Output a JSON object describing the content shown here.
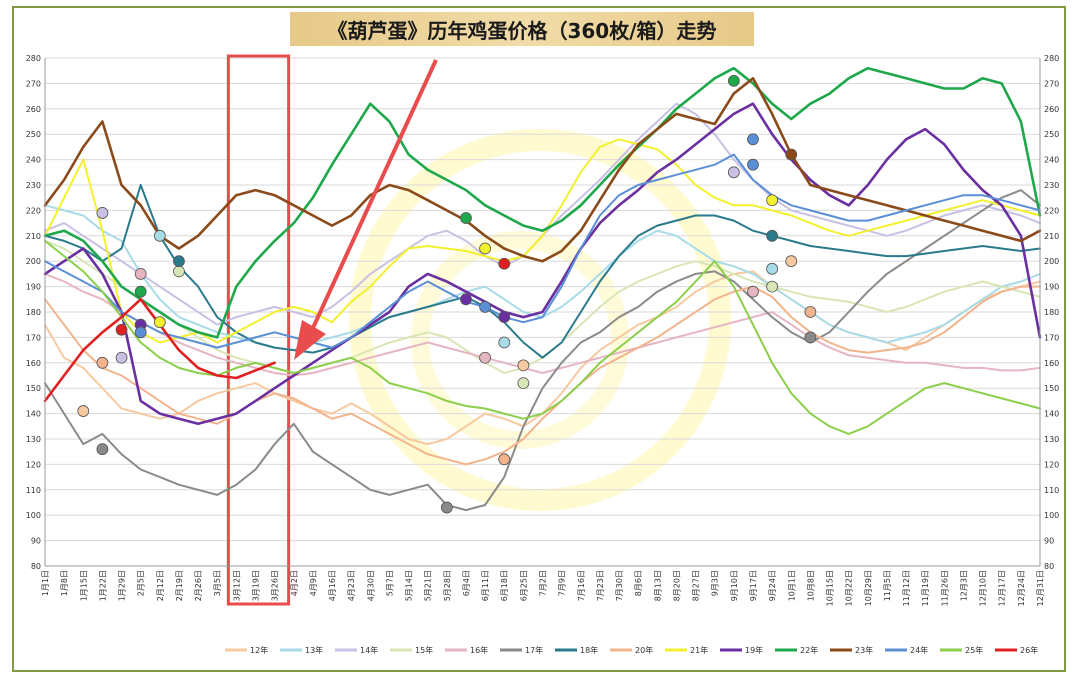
{
  "chart_data": {
    "type": "line",
    "title": "《葫芦蛋》历年鸡蛋价格（360枚/箱）走势",
    "ylim": [
      80,
      280
    ],
    "yticks": [
      80,
      90,
      100,
      110,
      120,
      130,
      140,
      150,
      160,
      170,
      180,
      190,
      200,
      210,
      220,
      230,
      240,
      250,
      260,
      270,
      280
    ],
    "x_categories": [
      "1月1日",
      "1月8日",
      "1月15日",
      "1月22日",
      "1月29日",
      "2月5日",
      "2月12日",
      "2月19日",
      "2月26日",
      "3月5日",
      "3月12日",
      "3月19日",
      "3月26日",
      "4月2日",
      "4月9日",
      "4月16日",
      "4月23日",
      "4月30日",
      "5月7日",
      "5月14日",
      "5月21日",
      "5月28日",
      "6月4日",
      "6月11日",
      "6月18日",
      "6月25日",
      "7月2日",
      "7月9日",
      "7月16日",
      "7月23日",
      "7月30日",
      "8月6日",
      "8月13日",
      "8月20日",
      "8月27日",
      "9月3日",
      "9月10日",
      "9月17日",
      "9月24日",
      "10月1日",
      "10月8日",
      "10月15日",
      "10月22日",
      "10月29日",
      "11月5日",
      "11月12日",
      "11月19日",
      "11月26日",
      "12月3日",
      "12月10日",
      "12月17日",
      "12月24日",
      "12月31日"
    ],
    "grid": true,
    "legend_position": "bottom",
    "highlight": {
      "from": "3月12日",
      "to": "3月26日",
      "color": "#e84c4c"
    },
    "series": [
      {
        "name": "12年",
        "color": "#f7c9a0",
        "values": [
          175,
          162,
          158,
          150,
          142,
          140,
          138,
          140,
          145,
          148,
          150,
          152,
          148,
          145,
          142,
          140,
          144,
          140,
          135,
          130,
          128,
          130,
          135,
          140,
          138,
          135,
          140,
          148,
          158,
          165,
          170,
          175,
          178,
          182,
          188,
          192,
          195,
          196,
          190,
          185,
          180,
          175,
          172,
          170,
          168,
          165,
          170,
          175,
          180,
          185,
          188,
          190,
          192
        ]
      },
      {
        "name": "13年",
        "color": "#a8dbe8",
        "values": [
          222,
          220,
          218,
          212,
          208,
          195,
          185,
          178,
          175,
          172,
          170,
          168,
          166,
          165,
          168,
          170,
          172,
          175,
          178,
          180,
          182,
          185,
          188,
          190,
          185,
          180,
          178,
          182,
          188,
          195,
          202,
          208,
          212,
          210,
          205,
          200,
          198,
          195,
          190,
          185,
          180,
          175,
          172,
          170,
          168,
          170,
          172,
          175,
          180,
          185,
          190,
          192,
          195
        ]
      },
      {
        "name": "14年",
        "color": "#c9c0e3",
        "values": [
          212,
          215,
          210,
          205,
          200,
          195,
          190,
          185,
          180,
          175,
          178,
          180,
          182,
          180,
          178,
          182,
          188,
          195,
          200,
          205,
          210,
          212,
          208,
          202,
          198,
          202,
          210,
          218,
          225,
          232,
          240,
          248,
          255,
          262,
          258,
          250,
          240,
          232,
          225,
          220,
          218,
          216,
          214,
          212,
          210,
          212,
          215,
          218,
          220,
          222,
          220,
          218,
          215
        ]
      },
      {
        "name": "15年",
        "color": "#d8e6b5",
        "values": [
          208,
          205,
          200,
          195,
          190,
          185,
          180,
          175,
          170,
          165,
          162,
          160,
          158,
          156,
          158,
          160,
          162,
          165,
          168,
          170,
          172,
          170,
          165,
          160,
          156,
          158,
          162,
          168,
          175,
          182,
          188,
          192,
          195,
          198,
          200,
          198,
          195,
          192,
          190,
          188,
          186,
          185,
          184,
          182,
          180,
          182,
          185,
          188,
          190,
          192,
          190,
          188,
          186
        ]
      },
      {
        "name": "16年",
        "color": "#e6b5c2",
        "values": [
          195,
          192,
          188,
          185,
          180,
          176,
          172,
          168,
          165,
          162,
          160,
          158,
          156,
          155,
          156,
          158,
          160,
          162,
          164,
          166,
          168,
          166,
          164,
          162,
          160,
          158,
          156,
          158,
          160,
          162,
          164,
          166,
          168,
          170,
          172,
          174,
          176,
          178,
          180,
          175,
          170,
          166,
          163,
          162,
          161,
          160,
          160,
          159,
          158,
          158,
          157,
          157,
          158
        ]
      },
      {
        "name": "17年",
        "color": "#8a8a8a",
        "values": [
          152,
          140,
          128,
          132,
          124,
          118,
          115,
          112,
          110,
          108,
          112,
          118,
          128,
          136,
          125,
          120,
          115,
          110,
          108,
          110,
          112,
          104,
          102,
          104,
          115,
          135,
          150,
          160,
          168,
          172,
          178,
          182,
          188,
          192,
          195,
          196,
          192,
          185,
          178,
          172,
          168,
          172,
          180,
          188,
          195,
          200,
          205,
          210,
          215,
          220,
          225,
          228,
          222
        ]
      },
      {
        "name": "18年",
        "color": "#2a7a8c",
        "values": [
          210,
          208,
          205,
          200,
          205,
          230,
          210,
          198,
          190,
          178,
          172,
          168,
          166,
          165,
          164,
          166,
          170,
          174,
          178,
          180,
          182,
          184,
          186,
          182,
          176,
          168,
          162,
          168,
          180,
          192,
          202,
          210,
          214,
          216,
          218,
          218,
          216,
          212,
          210,
          208,
          206,
          205,
          204,
          203,
          202,
          202,
          203,
          204,
          205,
          206,
          205,
          204,
          205
        ]
      },
      {
        "name": "20年",
        "color": "#f2b48c",
        "values": [
          185,
          175,
          165,
          158,
          155,
          150,
          145,
          140,
          138,
          136,
          140,
          145,
          148,
          146,
          142,
          138,
          140,
          136,
          132,
          128,
          124,
          122,
          120,
          122,
          125,
          130,
          138,
          145,
          152,
          158,
          162,
          166,
          170,
          175,
          180,
          185,
          188,
          190,
          186,
          178,
          172,
          168,
          165,
          164,
          165,
          166,
          168,
          172,
          178,
          184,
          188,
          190,
          190
        ]
      },
      {
        "name": "21年",
        "color": "#f3f02e",
        "values": [
          210,
          225,
          240,
          212,
          180,
          172,
          168,
          170,
          172,
          168,
          172,
          176,
          180,
          182,
          180,
          176,
          184,
          190,
          198,
          205,
          206,
          205,
          204,
          202,
          200,
          202,
          210,
          222,
          235,
          245,
          248,
          246,
          244,
          238,
          230,
          225,
          222,
          222,
          220,
          218,
          215,
          212,
          210,
          212,
          214,
          216,
          218,
          220,
          222,
          224,
          222,
          220,
          218
        ]
      },
      {
        "name": "19年",
        "color": "#6a2fa0",
        "values": [
          195,
          200,
          205,
          195,
          180,
          145,
          140,
          138,
          136,
          138,
          140,
          145,
          150,
          155,
          160,
          165,
          170,
          175,
          180,
          190,
          195,
          192,
          188,
          184,
          180,
          178,
          180,
          192,
          205,
          215,
          222,
          228,
          235,
          240,
          246,
          252,
          258,
          262,
          250,
          240,
          232,
          226,
          222,
          230,
          240,
          248,
          252,
          246,
          236,
          228,
          222,
          210,
          170
        ]
      },
      {
        "name": "22年",
        "color": "#1fa84b",
        "values": [
          210,
          212,
          208,
          200,
          190,
          185,
          180,
          175,
          172,
          170,
          190,
          200,
          208,
          215,
          225,
          238,
          250,
          262,
          255,
          242,
          236,
          232,
          228,
          222,
          218,
          214,
          212,
          216,
          222,
          230,
          238,
          245,
          252,
          260,
          266,
          272,
          276,
          270,
          262,
          256,
          262,
          266,
          272,
          276,
          274,
          272,
          270,
          268,
          268,
          272,
          270,
          255,
          218
        ]
      },
      {
        "name": "23年",
        "color": "#8b4a1a",
        "values": [
          222,
          232,
          245,
          255,
          230,
          222,
          210,
          205,
          210,
          218,
          226,
          228,
          226,
          222,
          218,
          214,
          218,
          226,
          230,
          228,
          224,
          220,
          216,
          210,
          205,
          202,
          200,
          204,
          212,
          224,
          236,
          246,
          252,
          258,
          256,
          254,
          266,
          272,
          258,
          242,
          230,
          228,
          226,
          224,
          222,
          220,
          218,
          216,
          214,
          212,
          210,
          208,
          212
        ]
      },
      {
        "name": "24年",
        "color": "#5a8fd6",
        "values": [
          200,
          196,
          192,
          188,
          180,
          176,
          172,
          170,
          168,
          166,
          168,
          170,
          172,
          170,
          168,
          166,
          170,
          176,
          182,
          188,
          192,
          188,
          184,
          182,
          178,
          176,
          178,
          190,
          205,
          218,
          226,
          230,
          232,
          234,
          236,
          238,
          242,
          232,
          226,
          222,
          220,
          218,
          216,
          216,
          218,
          220,
          222,
          224,
          226,
          226,
          224,
          222,
          220
        ]
      },
      {
        "name": "25年",
        "color": "#8bcf4a",
        "values": [
          208,
          202,
          196,
          188,
          178,
          168,
          162,
          158,
          156,
          155,
          158,
          160,
          158,
          156,
          158,
          160,
          162,
          158,
          152,
          150,
          148,
          145,
          143,
          142,
          140,
          138,
          140,
          145,
          152,
          160,
          166,
          172,
          178,
          184,
          192,
          200,
          190,
          175,
          160,
          148,
          140,
          135,
          132,
          135,
          140,
          145,
          150,
          152,
          150,
          148,
          146,
          144,
          142
        ]
      },
      {
        "name": "26年",
        "color": "#e02020",
        "values": [
          145,
          155,
          165,
          172,
          178,
          185,
          175,
          165,
          158,
          155,
          154,
          157,
          160
        ]
      }
    ],
    "annotations": [
      {
        "series": "14年",
        "x": "1月22日",
        "y": 219
      },
      {
        "series": "13年",
        "x": "2月12日",
        "y": 210
      },
      {
        "series": "16年",
        "x": "2月5日",
        "y": 195
      },
      {
        "series": "15年",
        "x": "2月19日",
        "y": 196
      },
      {
        "series": "18年",
        "x": "2月19日",
        "y": 200
      },
      {
        "series": "22年",
        "x": "2月5日",
        "y": 188
      },
      {
        "series": "19年",
        "x": "2月5日",
        "y": 175
      },
      {
        "series": "21年",
        "x": "2月12日",
        "y": 176
      },
      {
        "series": "24年",
        "x": "2月5日",
        "y": 172
      },
      {
        "series": "26年",
        "x": "1月29日",
        "y": 173
      },
      {
        "series": "20年",
        "x": "1月22日",
        "y": 160
      },
      {
        "series": "14年",
        "x": "1月29日",
        "y": 162
      },
      {
        "series": "12年",
        "x": "1月15日",
        "y": 141
      },
      {
        "series": "17年",
        "x": "1月22日",
        "y": 126
      },
      {
        "series": "22年",
        "x": "6月4日",
        "y": 217
      },
      {
        "series": "21年",
        "x": "6月11日",
        "y": 205
      },
      {
        "series": "26年",
        "x": "6月18日",
        "y": 199
      },
      {
        "series": "19年",
        "x": "6月4日",
        "y": 185
      },
      {
        "series": "24年",
        "x": "6月11日",
        "y": 182
      },
      {
        "series": "19年",
        "x": "6月18日",
        "y": 178
      },
      {
        "series": "13年",
        "x": "6月18日",
        "y": 168
      },
      {
        "series": "16年",
        "x": "6月11日",
        "y": 162
      },
      {
        "series": "12年",
        "x": "6月25日",
        "y": 159
      },
      {
        "series": "15年",
        "x": "6月25日",
        "y": 152
      },
      {
        "series": "20年",
        "x": "6月18日",
        "y": 122
      },
      {
        "series": "17年",
        "x": "5月28日",
        "y": 103
      },
      {
        "series": "22年",
        "x": "9月10日",
        "y": 271
      },
      {
        "series": "24年",
        "x": "9月17日",
        "y": 248
      },
      {
        "series": "23年",
        "x": "10月1日",
        "y": 242
      },
      {
        "series": "24年",
        "x": "9月17日",
        "y": 238
      },
      {
        "series": "14年",
        "x": "9月10日",
        "y": 235
      },
      {
        "series": "21年",
        "x": "9月24日",
        "y": 224
      },
      {
        "series": "18年",
        "x": "9月24日",
        "y": 210
      },
      {
        "series": "12年",
        "x": "10月1日",
        "y": 200
      },
      {
        "series": "13年",
        "x": "9月24日",
        "y": 197
      },
      {
        "series": "15年",
        "x": "9月24日",
        "y": 190
      },
      {
        "series": "16年",
        "x": "9月17日",
        "y": 188
      },
      {
        "series": "20年",
        "x": "10月8日",
        "y": 180
      },
      {
        "series": "17年",
        "x": "10月8日",
        "y": 170
      }
    ]
  }
}
